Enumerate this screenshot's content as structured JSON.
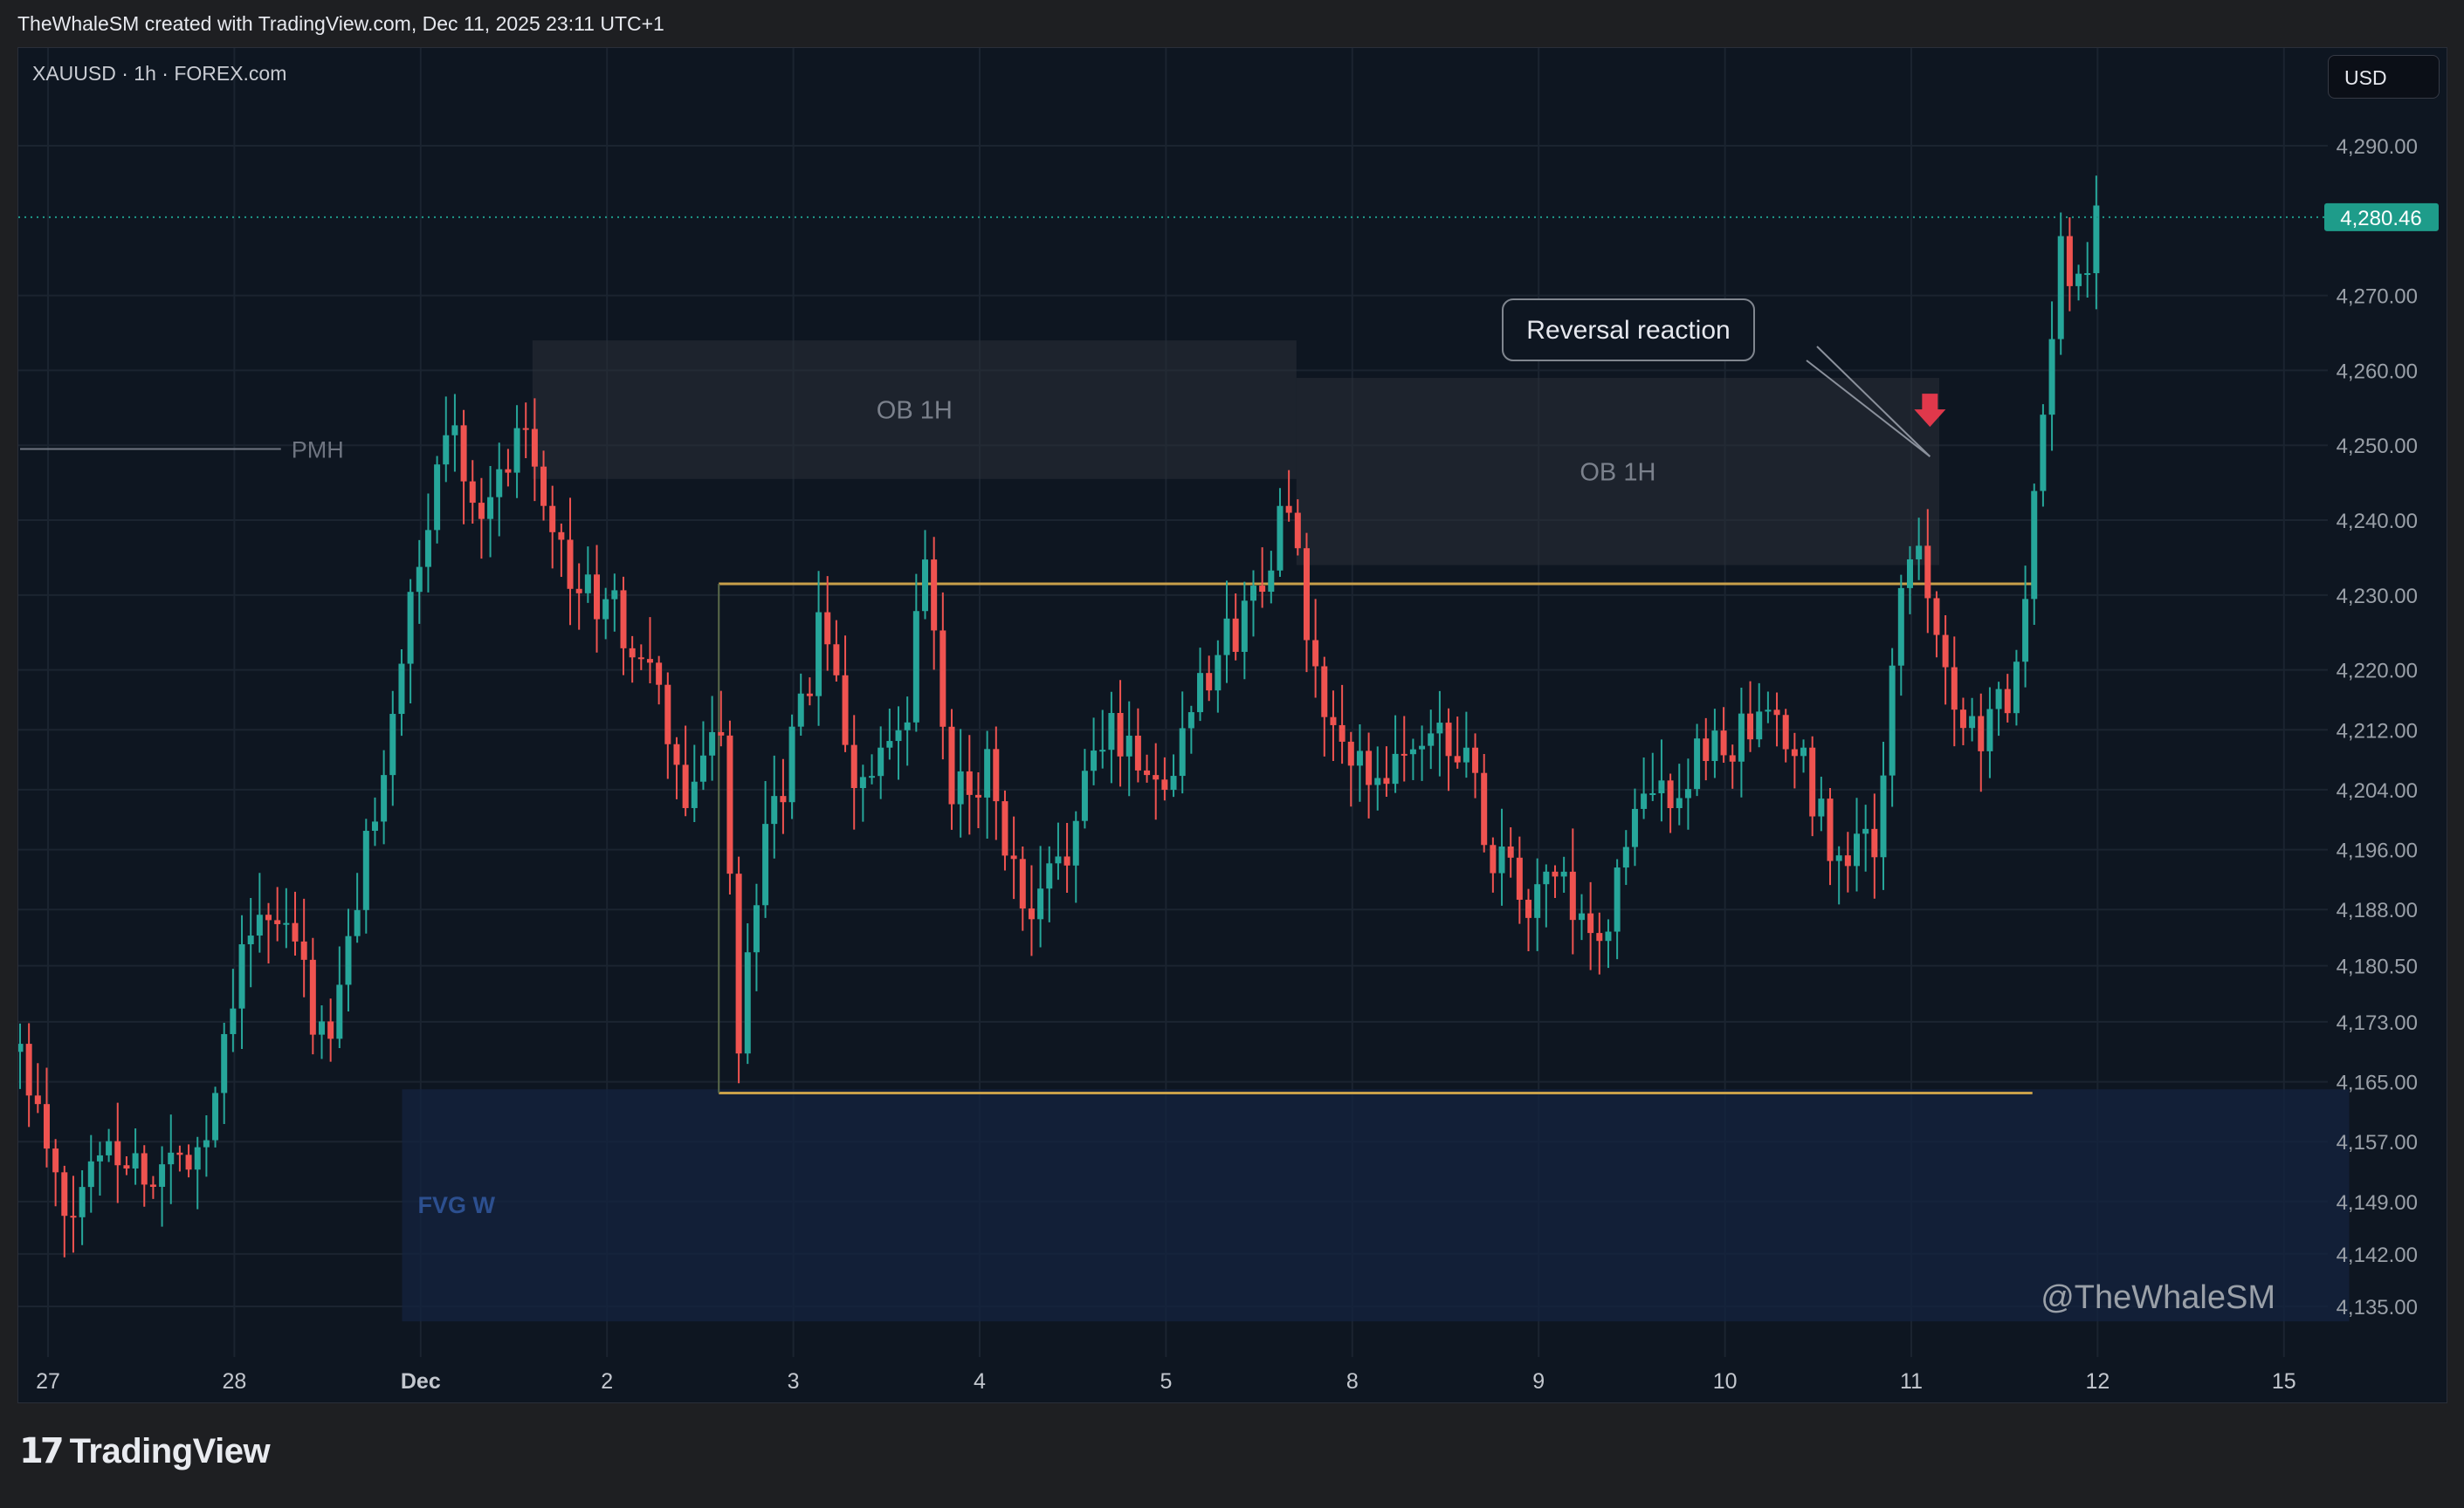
{
  "header": {
    "attribution": "TheWhaleSM created with TradingView.com, Dec 11, 2025 23:11 UTC+1"
  },
  "chart_header": {
    "symbol_line": "XAUUSD · 1h · FOREX.com",
    "currency_button": "USD"
  },
  "footer": {
    "brand": "TradingView",
    "logo_icon": "tradingview-logo-icon"
  },
  "colors": {
    "up": "#26a69a",
    "down": "#ef5350",
    "range_line": "#c8a04a",
    "price_tag": "#1e9c8a",
    "background": "#0e1621",
    "fvg": "#14233f"
  },
  "chart_data": {
    "type": "candlestick",
    "title": "",
    "symbol": "XAUUSD",
    "timeframe": "1h",
    "source": "FOREX.com",
    "watermark": "@TheWhaleSM",
    "ylim": [
      4130,
      4300
    ],
    "y_ticks": [
      {
        "value": 4290,
        "label": "4,290.00"
      },
      {
        "value": 4270,
        "label": "4,270.00"
      },
      {
        "value": 4260,
        "label": "4,260.00"
      },
      {
        "value": 4250,
        "label": "4,250.00"
      },
      {
        "value": 4240,
        "label": "4,240.00"
      },
      {
        "value": 4230,
        "label": "4,230.00"
      },
      {
        "value": 4220,
        "label": "4,220.00"
      },
      {
        "value": 4212,
        "label": "4,212.00"
      },
      {
        "value": 4204,
        "label": "4,204.00"
      },
      {
        "value": 4196,
        "label": "4,196.00"
      },
      {
        "value": 4188,
        "label": "4,188.00"
      },
      {
        "value": 4180.5,
        "label": "4,180.50"
      },
      {
        "value": 4173,
        "label": "4,173.00"
      },
      {
        "value": 4165,
        "label": "4,165.00"
      },
      {
        "value": 4157,
        "label": "4,157.00"
      },
      {
        "value": 4149,
        "label": "4,149.00"
      },
      {
        "value": 4142,
        "label": "4,142.00"
      },
      {
        "value": 4135,
        "label": "4,135.00"
      }
    ],
    "x_range": [
      0,
      12.4
    ],
    "x_ticks": [
      {
        "pos": 0,
        "label": "27"
      },
      {
        "pos": 1,
        "label": "28"
      },
      {
        "pos": 2,
        "label": "Dec"
      },
      {
        "pos": 3,
        "label": "2"
      },
      {
        "pos": 4,
        "label": "3"
      },
      {
        "pos": 5,
        "label": "4"
      },
      {
        "pos": 6,
        "label": "5"
      },
      {
        "pos": 7,
        "label": "8"
      },
      {
        "pos": 8,
        "label": "9"
      },
      {
        "pos": 9,
        "label": "10"
      },
      {
        "pos": 10,
        "label": "11"
      },
      {
        "pos": 11,
        "label": "12"
      },
      {
        "pos": 12,
        "label": "15"
      }
    ],
    "last_price": {
      "value": 4280.46,
      "label": "4,280.46"
    },
    "zones": [
      {
        "label": "OB 1H",
        "x0": 2.6,
        "x1": 6.7,
        "y0": 4245.5,
        "y1": 4264
      },
      {
        "label": "OB 1H",
        "x0": 6.7,
        "x1": 10.15,
        "y0": 4234,
        "y1": 4259
      },
      {
        "label": "FVG W",
        "x0": 1.9,
        "x1": 12.35,
        "y0": 4133,
        "y1": 4164
      }
    ],
    "levels": [
      {
        "label": "PMH",
        "value": 4249.5,
        "x0": -0.15,
        "x1": 1.25
      },
      {
        "label": "",
        "value": 4231.5,
        "x0": 3.6,
        "x1": 10.65
      },
      {
        "label": "",
        "value": 4163.5,
        "x0": 3.6,
        "x1": 10.65
      }
    ],
    "annotation": {
      "text": "Reversal reaction",
      "x": 10.1,
      "y": 4248.5
    },
    "anchors": [
      {
        "t": -0.15,
        "p": 4169
      },
      {
        "t": 0.1,
        "p": 4145
      },
      {
        "t": 0.3,
        "p": 4158
      },
      {
        "t": 0.55,
        "p": 4152
      },
      {
        "t": 0.85,
        "p": 4158
      },
      {
        "t": 1.05,
        "p": 4186
      },
      {
        "t": 1.3,
        "p": 4185
      },
      {
        "t": 1.5,
        "p": 4168
      },
      {
        "t": 1.7,
        "p": 4195
      },
      {
        "t": 1.95,
        "p": 4228
      },
      {
        "t": 2.15,
        "p": 4254
      },
      {
        "t": 2.35,
        "p": 4240
      },
      {
        "t": 2.55,
        "p": 4255
      },
      {
        "t": 2.8,
        "p": 4232
      },
      {
        "t": 3.05,
        "p": 4227
      },
      {
        "t": 3.25,
        "p": 4218
      },
      {
        "t": 3.45,
        "p": 4200
      },
      {
        "t": 3.6,
        "p": 4218
      },
      {
        "t": 3.7,
        "p": 4170
      },
      {
        "t": 3.85,
        "p": 4196
      },
      {
        "t": 4.0,
        "p": 4210
      },
      {
        "t": 4.15,
        "p": 4226
      },
      {
        "t": 4.35,
        "p": 4204
      },
      {
        "t": 4.6,
        "p": 4210
      },
      {
        "t": 4.7,
        "p": 4236
      },
      {
        "t": 4.85,
        "p": 4202
      },
      {
        "t": 5.05,
        "p": 4208
      },
      {
        "t": 5.25,
        "p": 4184
      },
      {
        "t": 5.45,
        "p": 4196
      },
      {
        "t": 5.7,
        "p": 4213
      },
      {
        "t": 6.0,
        "p": 4204
      },
      {
        "t": 6.15,
        "p": 4218
      },
      {
        "t": 6.4,
        "p": 4226
      },
      {
        "t": 6.65,
        "p": 4242
      },
      {
        "t": 6.8,
        "p": 4218
      },
      {
        "t": 7.0,
        "p": 4206
      },
      {
        "t": 7.25,
        "p": 4208
      },
      {
        "t": 7.55,
        "p": 4212
      },
      {
        "t": 7.75,
        "p": 4196
      },
      {
        "t": 7.95,
        "p": 4188
      },
      {
        "t": 8.1,
        "p": 4193
      },
      {
        "t": 8.3,
        "p": 4180
      },
      {
        "t": 8.5,
        "p": 4200
      },
      {
        "t": 8.75,
        "p": 4205
      },
      {
        "t": 8.95,
        "p": 4210
      },
      {
        "t": 9.25,
        "p": 4212
      },
      {
        "t": 9.4,
        "p": 4208
      },
      {
        "t": 9.6,
        "p": 4195
      },
      {
        "t": 9.8,
        "p": 4196
      },
      {
        "t": 9.95,
        "p": 4230
      },
      {
        "t": 10.05,
        "p": 4237
      },
      {
        "t": 10.25,
        "p": 4214
      },
      {
        "t": 10.4,
        "p": 4212
      },
      {
        "t": 10.5,
        "p": 4215
      },
      {
        "t": 10.6,
        "p": 4223
      },
      {
        "t": 10.7,
        "p": 4255
      },
      {
        "t": 10.8,
        "p": 4276
      },
      {
        "t": 10.9,
        "p": 4272
      },
      {
        "t": 11.0,
        "p": 4280
      }
    ]
  }
}
